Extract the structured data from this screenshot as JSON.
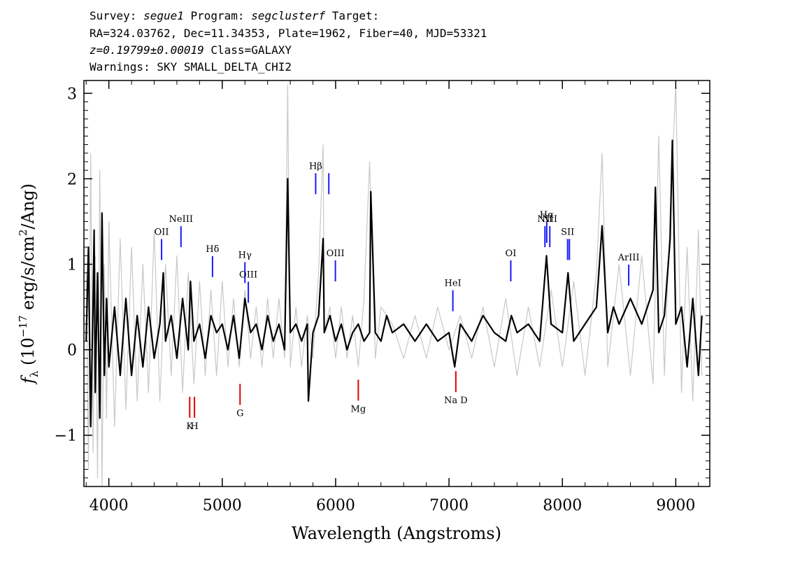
{
  "header": {
    "line1_a": "Survey: ",
    "survey": "segue1",
    "line1_b": " Program: ",
    "program": "segclusterf",
    "line1_c": " Target:",
    "line2": "RA=324.03762, Dec=11.34353, Plate=1962, Fiber=40, MJD=53321",
    "redshift": "z=0.19799±0.00019",
    "class_text": " Class=GALAXY",
    "warnings": "Warnings: SKY SMALL_DELTA_CHI2"
  },
  "chart_data": {
    "type": "line",
    "xlabel": "Wavelength (Angstroms)",
    "ylabel_prefix": "f",
    "ylabel_sub": "λ",
    "ylabel_rest": " (10",
    "ylabel_exp": "−17",
    "ylabel_units": " erg/s/cm",
    "ylabel_exp2": "2",
    "ylabel_end": "/Ang)",
    "xlim": [
      3780,
      9300
    ],
    "ylim": [
      -1.6,
      3.15
    ],
    "xticks": [
      4000,
      5000,
      6000,
      7000,
      8000,
      9000
    ],
    "yticks": [
      -1,
      0,
      1,
      2,
      3
    ],
    "ytick_labels": [
      "−1",
      "0",
      "1",
      "2",
      "3"
    ],
    "series": [
      {
        "role": "raw-flux",
        "color": "#c8c8c8",
        "x": [
          3800,
          3820,
          3840,
          3860,
          3880,
          3900,
          3920,
          3940,
          3960,
          3980,
          4000,
          4050,
          4100,
          4150,
          4200,
          4250,
          4300,
          4350,
          4400,
          4450,
          4500,
          4550,
          4600,
          4650,
          4700,
          4750,
          4800,
          4850,
          4900,
          4950,
          5000,
          5050,
          5100,
          5150,
          5200,
          5250,
          5300,
          5350,
          5400,
          5450,
          5500,
          5550,
          5577,
          5600,
          5650,
          5700,
          5750,
          5800,
          5850,
          5890,
          5900,
          5950,
          6000,
          6050,
          6100,
          6150,
          6200,
          6250,
          6300,
          6350,
          6400,
          6500,
          6600,
          6700,
          6800,
          6900,
          7000,
          7100,
          7200,
          7300,
          7400,
          7500,
          7600,
          7700,
          7800,
          7900,
          8000,
          8100,
          8200,
          8300,
          8350,
          8400,
          8500,
          8600,
          8700,
          8800,
          8850,
          8900,
          8950,
          9000,
          9050,
          9100,
          9150,
          9200,
          9230
        ],
        "y": [
          0.9,
          -1.4,
          2.3,
          -1.2,
          1.1,
          -1.5,
          2.1,
          -1.6,
          1.0,
          -0.8,
          1.5,
          -0.9,
          1.3,
          -0.7,
          1.2,
          -0.6,
          1.0,
          -0.5,
          1.4,
          -0.6,
          1.0,
          -0.3,
          1.1,
          -0.5,
          0.9,
          -0.4,
          0.8,
          -0.3,
          0.7,
          -0.3,
          0.8,
          -0.2,
          0.6,
          -0.2,
          0.7,
          -0.1,
          0.5,
          -0.2,
          0.6,
          -0.1,
          0.6,
          -0.1,
          3.1,
          -0.2,
          0.5,
          -0.2,
          0.4,
          -0.1,
          0.9,
          2.4,
          0.2,
          0.5,
          -0.1,
          0.5,
          -0.1,
          0.4,
          -0.2,
          0.6,
          2.2,
          -0.1,
          0.5,
          0.3,
          -0.1,
          0.4,
          -0.1,
          0.5,
          0.0,
          0.4,
          -0.1,
          0.5,
          -0.2,
          0.6,
          -0.3,
          0.5,
          -0.2,
          0.7,
          -0.2,
          0.8,
          -0.3,
          0.9,
          2.3,
          -0.2,
          1.0,
          -0.3,
          1.1,
          -0.4,
          2.5,
          -0.3,
          1.6,
          3.1,
          -0.5,
          1.2,
          -0.6,
          1.4,
          -0.3
        ]
      },
      {
        "role": "smoothed-flux",
        "color": "#000000",
        "x": [
          3800,
          3820,
          3840,
          3860,
          3870,
          3880,
          3900,
          3920,
          3940,
          3960,
          3980,
          4000,
          4050,
          4100,
          4150,
          4200,
          4250,
          4300,
          4350,
          4400,
          4450,
          4480,
          4500,
          4550,
          4600,
          4650,
          4700,
          4720,
          4750,
          4800,
          4850,
          4900,
          4950,
          5000,
          5050,
          5100,
          5150,
          5200,
          5250,
          5300,
          5350,
          5400,
          5450,
          5500,
          5550,
          5577,
          5600,
          5650,
          5700,
          5750,
          5760,
          5800,
          5850,
          5890,
          5900,
          5950,
          6000,
          6050,
          6100,
          6150,
          6200,
          6250,
          6300,
          6310,
          6350,
          6400,
          6450,
          6500,
          6600,
          6700,
          6800,
          6900,
          7000,
          7050,
          7100,
          7200,
          7300,
          7400,
          7500,
          7550,
          7600,
          7700,
          7800,
          7860,
          7900,
          8000,
          8050,
          8100,
          8200,
          8300,
          8350,
          8400,
          8450,
          8500,
          8600,
          8700,
          8800,
          8820,
          8850,
          8900,
          8950,
          8970,
          9000,
          9050,
          9100,
          9150,
          9200,
          9230
        ],
        "y": [
          0.1,
          1.2,
          -0.9,
          0.5,
          1.4,
          -0.5,
          0.9,
          -0.8,
          1.6,
          -0.3,
          0.6,
          -0.2,
          0.5,
          -0.3,
          0.6,
          -0.3,
          0.4,
          -0.2,
          0.5,
          -0.1,
          0.3,
          0.9,
          0.1,
          0.4,
          -0.1,
          0.6,
          0.0,
          0.8,
          0.1,
          0.3,
          -0.1,
          0.4,
          0.2,
          0.3,
          0.0,
          0.4,
          -0.1,
          0.6,
          0.2,
          0.3,
          0.0,
          0.4,
          0.1,
          0.3,
          0.0,
          2.0,
          0.2,
          0.3,
          0.1,
          0.3,
          -0.6,
          0.2,
          0.4,
          1.3,
          0.2,
          0.4,
          0.1,
          0.3,
          0.0,
          0.2,
          0.3,
          0.1,
          0.2,
          1.85,
          0.2,
          0.1,
          0.4,
          0.2,
          0.3,
          0.1,
          0.3,
          0.1,
          0.2,
          -0.2,
          0.3,
          0.1,
          0.4,
          0.2,
          0.1,
          0.4,
          0.2,
          0.3,
          0.1,
          1.1,
          0.3,
          0.2,
          0.9,
          0.1,
          0.3,
          0.5,
          1.45,
          0.2,
          0.5,
          0.3,
          0.6,
          0.3,
          0.7,
          1.9,
          0.2,
          0.4,
          1.3,
          2.45,
          0.3,
          0.5,
          -0.2,
          0.6,
          -0.3,
          0.4
        ]
      }
    ],
    "lines": [
      {
        "label": "OII",
        "x": 4465,
        "y": 1.05,
        "kind": "emission",
        "color": "#1a1aff"
      },
      {
        "label": "NeIII",
        "x": 4636,
        "y": 1.2,
        "kind": "emission",
        "color": "#1a1aff"
      },
      {
        "label": "Hδ",
        "x": 4914,
        "y": 0.85,
        "kind": "emission",
        "color": "#1a1aff"
      },
      {
        "label": "Hγ",
        "x": 5200,
        "y": 0.78,
        "kind": "emission",
        "color": "#1a1aff"
      },
      {
        "label": "OIII",
        "x": 5230,
        "y": 0.55,
        "kind": "emission",
        "color": "#1a1aff"
      },
      {
        "label": "Hβ",
        "x": 5824,
        "y": 1.82,
        "kind": "emission",
        "color": "#1a1aff"
      },
      {
        "label": "",
        "x": 5940,
        "y": 1.82,
        "kind": "emission",
        "color": "#1a1aff"
      },
      {
        "label": "OIII",
        "x": 5998,
        "y": 0.8,
        "kind": "emission",
        "color": "#1a1aff"
      },
      {
        "label": "HeI",
        "x": 7034,
        "y": 0.45,
        "kind": "emission",
        "color": "#1a1aff"
      },
      {
        "label": "OI",
        "x": 7545,
        "y": 0.8,
        "kind": "emission",
        "color": "#1a1aff"
      },
      {
        "label": "NII",
        "x": 7846,
        "y": 1.2,
        "kind": "emission",
        "color": "#1a1aff"
      },
      {
        "label": "Hα",
        "x": 7862,
        "y": 1.25,
        "kind": "emission",
        "color": "#1a1aff"
      },
      {
        "label": "NII",
        "x": 7889,
        "y": 1.2,
        "kind": "emission",
        "color": "#1a1aff"
      },
      {
        "label": "SII",
        "x": 8046,
        "y": 1.05,
        "kind": "emission",
        "color": "#1a1aff"
      },
      {
        "label": "",
        "x": 8062,
        "y": 1.05,
        "kind": "emission",
        "color": "#1a1aff"
      },
      {
        "label": "ArIII",
        "x": 8585,
        "y": 0.75,
        "kind": "emission",
        "color": "#1a1aff"
      },
      {
        "label": "K",
        "x": 4713,
        "y": -0.55,
        "kind": "absorption",
        "color": "#e00000"
      },
      {
        "label": "H",
        "x": 4755,
        "y": -0.55,
        "kind": "absorption",
        "color": "#e00000"
      },
      {
        "label": "G",
        "x": 5157,
        "y": -0.4,
        "kind": "absorption",
        "color": "#e00000"
      },
      {
        "label": "Mg",
        "x": 6200,
        "y": -0.35,
        "kind": "absorption",
        "color": "#e00000"
      },
      {
        "label": "Na D",
        "x": 7060,
        "y": -0.25,
        "kind": "absorption",
        "color": "#e00000"
      }
    ]
  }
}
